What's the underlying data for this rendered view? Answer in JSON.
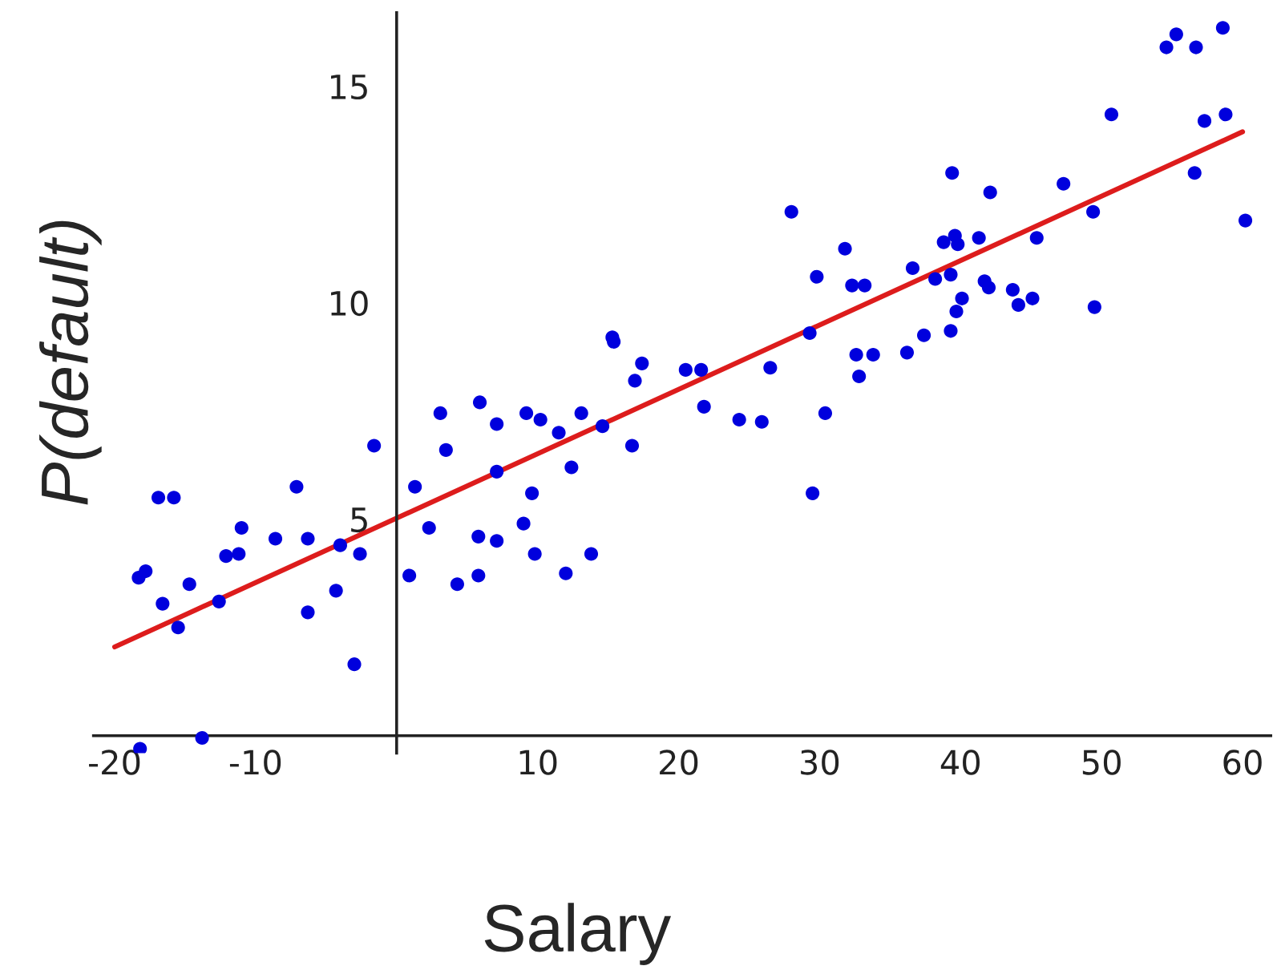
{
  "chart_data": {
    "type": "scatter",
    "xlabel": "Salary",
    "ylabel": "P(default)",
    "xlim": [
      -21.5,
      62
    ],
    "ylim": [
      -0.4,
      16.7
    ],
    "xticks": [
      -20,
      -10,
      10,
      20,
      30,
      40,
      50,
      60
    ],
    "yticks": [
      5,
      10,
      15
    ],
    "grid": false,
    "series": [
      {
        "color": "#0000dd",
        "marker": "circle",
        "x": [
          -1.6,
          -16.9,
          -15.8,
          -7.1,
          1.3,
          -11.0,
          -8.6,
          -6.3,
          -4.0,
          -12.1,
          -11.2,
          -2.6,
          -18.3,
          -17.8,
          -14.7,
          0.9,
          -16.6,
          -12.6,
          -4.3,
          -6.3,
          -15.5,
          -3.0,
          -13.8,
          -18.2,
          15.3,
          15.4,
          17.4,
          16.9,
          20.5,
          21.6,
          21.8,
          5.9,
          3.1,
          9.2,
          13.1,
          10.2,
          7.1,
          11.5,
          14.6,
          16.7,
          3.5,
          7.1,
          12.4,
          9.6,
          2.3,
          9.0,
          5.8,
          7.1,
          13.8,
          9.8,
          4.3,
          5.8,
          12.0,
          28.0,
          31.8,
          29.8,
          32.3,
          33.2,
          36.6,
          38.8,
          39.6,
          39.8,
          41.3,
          42.1,
          38.2,
          39.3,
          41.7,
          42.0,
          40.1,
          39.7,
          39.3,
          37.4,
          36.2,
          32.6,
          33.8,
          32.8,
          29.3,
          26.5,
          24.3,
          25.9,
          30.4,
          29.5,
          39.4,
          47.3,
          50.7,
          54.6,
          55.3,
          56.7,
          58.6,
          57.3,
          58.8,
          56.6,
          60.2,
          49.4,
          49.5,
          45.4,
          43.7,
          44.1,
          45.1
        ],
        "values": [
          6.7,
          5.5,
          5.5,
          5.75,
          5.75,
          4.8,
          4.55,
          4.55,
          4.4,
          4.15,
          4.2,
          4.2,
          3.65,
          3.8,
          3.5,
          3.7,
          3.05,
          3.1,
          3.35,
          2.85,
          2.5,
          1.65,
          -0.05,
          -0.3,
          9.2,
          9.1,
          8.6,
          8.2,
          8.45,
          8.45,
          7.6,
          7.7,
          7.45,
          7.45,
          7.45,
          7.3,
          7.2,
          7.0,
          7.15,
          6.7,
          6.6,
          6.1,
          6.2,
          5.6,
          4.8,
          4.9,
          4.6,
          4.5,
          4.2,
          4.2,
          3.5,
          3.7,
          3.75,
          12.1,
          11.25,
          10.6,
          10.4,
          10.4,
          10.8,
          11.4,
          11.55,
          11.35,
          11.5,
          12.55,
          10.55,
          10.65,
          10.5,
          10.35,
          10.1,
          9.8,
          9.35,
          9.25,
          8.85,
          8.8,
          8.8,
          8.3,
          9.3,
          8.5,
          7.3,
          7.25,
          7.45,
          5.6,
          13.0,
          12.75,
          14.35,
          15.9,
          16.2,
          15.9,
          16.35,
          14.2,
          14.35,
          13.0,
          11.9,
          12.1,
          9.9,
          11.5,
          10.3,
          9.95,
          10.1
        ]
      },
      {
        "type": "line",
        "color": "#dd1c1c",
        "x": [
          -20,
          60
        ],
        "values": [
          2.05,
          13.95
        ]
      }
    ]
  }
}
